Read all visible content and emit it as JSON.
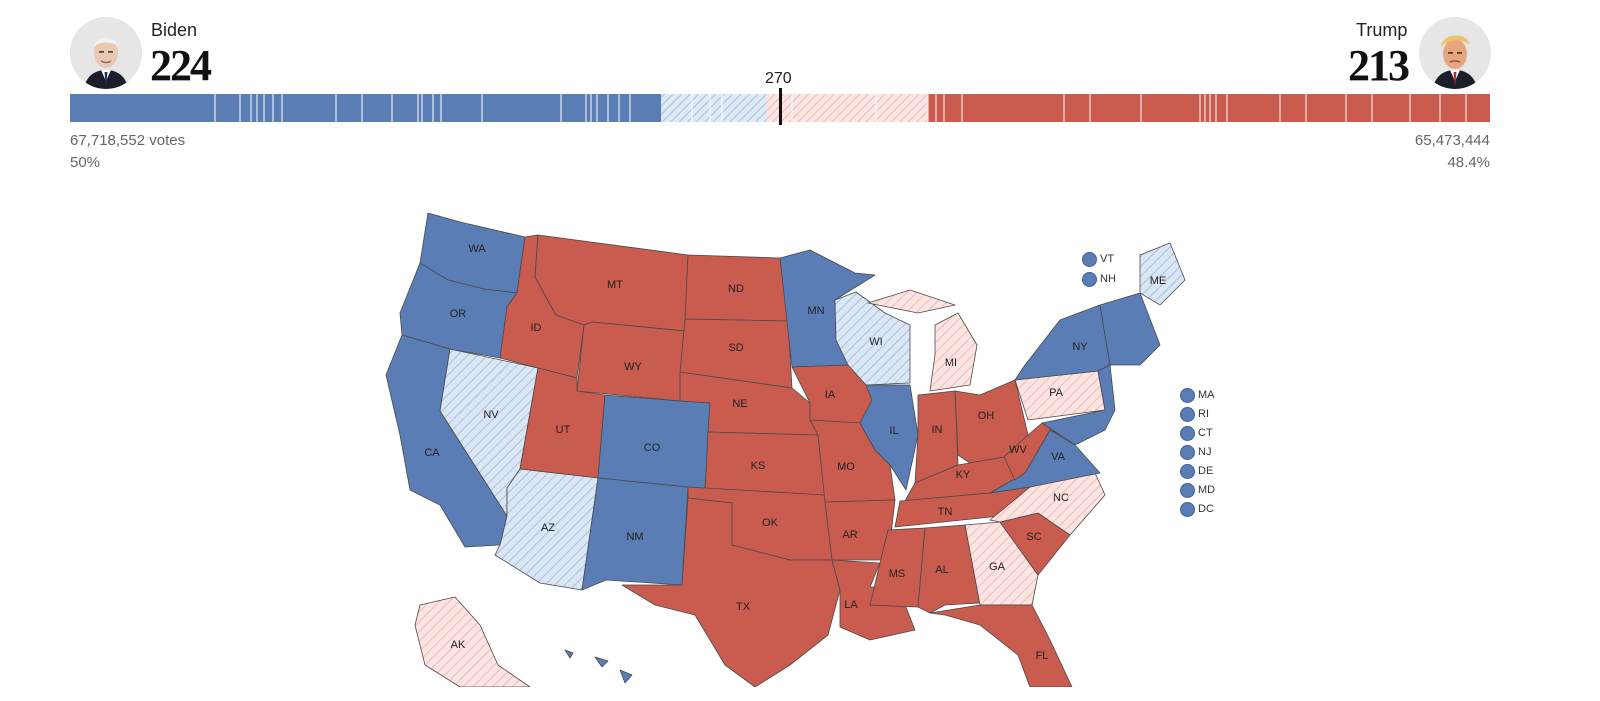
{
  "colors": {
    "dem_called": "#5a7db5",
    "dem_leaning": "#c7d7ee",
    "rep_called": "#c95c4e",
    "rep_leaning": "#f5d0cc",
    "state_border": "#4a4a4a"
  },
  "candidates": {
    "dem": {
      "name": "Biden",
      "electoral_votes": "224",
      "popular_votes": "67,718,552 votes",
      "percent": "50%"
    },
    "rep": {
      "name": "Trump",
      "electoral_votes": "213",
      "popular_votes": "65,473,444",
      "percent": "48.4%"
    }
  },
  "threshold": {
    "label": "270",
    "value": 270
  },
  "bar_segments": {
    "total_electoral_votes": 538,
    "dem_called": 224,
    "dem_leaning": 40,
    "rep_leaning": 61,
    "rep_called": 213
  },
  "states": {
    "WA": "dem_called",
    "OR": "dem_called",
    "CA": "dem_called",
    "NV": "dem_leaning",
    "ID": "rep_called",
    "MT": "rep_called",
    "WY": "rep_called",
    "UT": "rep_called",
    "AZ": "dem_leaning",
    "CO": "dem_called",
    "NM": "dem_called",
    "ND": "rep_called",
    "SD": "rep_called",
    "NE": "rep_called",
    "KS": "rep_called",
    "OK": "rep_called",
    "TX": "rep_called",
    "MN": "dem_called",
    "IA": "rep_called",
    "MO": "rep_called",
    "AR": "rep_called",
    "LA": "rep_called",
    "WI": "dem_leaning",
    "IL": "dem_called",
    "MI": "rep_leaning",
    "IN": "rep_called",
    "OH": "rep_called",
    "KY": "rep_called",
    "TN": "rep_called",
    "MS": "rep_called",
    "AL": "rep_called",
    "GA": "rep_leaning",
    "FL": "rep_called",
    "SC": "rep_called",
    "NC": "rep_leaning",
    "VA": "dem_called",
    "WV": "rep_called",
    "PA": "rep_leaning",
    "NY": "dem_called",
    "ME": "dem_leaning",
    "AK": "rep_leaning",
    "HI": "dem_called",
    "NE_STATES": "dem_called"
  },
  "small_states_top": [
    "VT",
    "NH"
  ],
  "small_states_right": [
    "MA",
    "RI",
    "CT",
    "NJ",
    "DE",
    "MD",
    "DC"
  ]
}
